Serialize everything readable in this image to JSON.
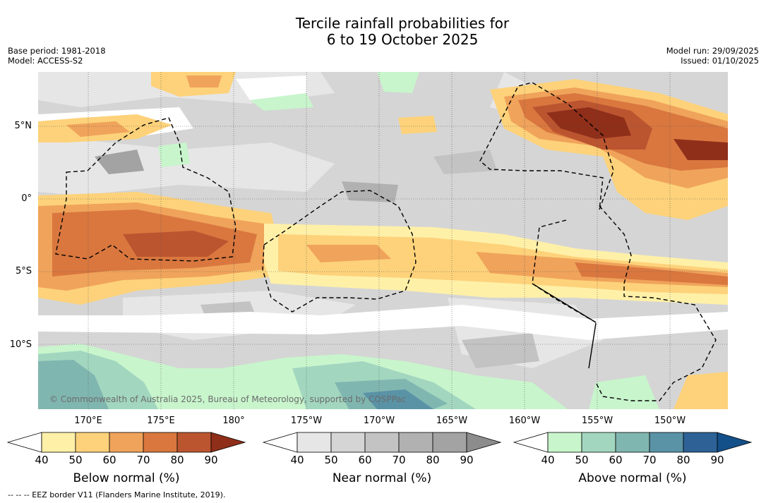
{
  "header": {
    "title_line1": "Tercile rainfall probabilities for",
    "title_line2": "6 to 19 October 2025",
    "base_period": "Base period: 1981-2018",
    "model": "Model: ACCESS-S2",
    "model_run": "Model run: 29/09/2025",
    "issued": "Issued: 01/10/2025"
  },
  "map": {
    "lat_labels": [
      "5°N",
      "0°",
      "5°S",
      "10°S"
    ],
    "lon_labels": [
      "170°E",
      "175°E",
      "180°",
      "175°W",
      "170°W",
      "165°W",
      "160°W",
      "155°W",
      "150°W"
    ],
    "credit": "© Commonwealth of Australia 2025, Bureau of Meteorology, supported by COSPPac"
  },
  "legend": {
    "ticks": [
      "40",
      "50",
      "60",
      "70",
      "80",
      "90"
    ],
    "below": {
      "title": "Below normal (%)",
      "colors": [
        "#ffffff",
        "#fff0a8",
        "#fdd27a",
        "#f0a35b",
        "#d9773f",
        "#bb5530",
        "#8f2e19"
      ]
    },
    "near": {
      "title": "Near normal (%)",
      "colors": [
        "#ffffff",
        "#e6e6e6",
        "#d5d5d5",
        "#c3c3c3",
        "#b1b1b1",
        "#a3a3a3",
        "#8c8c8c"
      ]
    },
    "above": {
      "title": "Above normal (%)",
      "colors": [
        "#ffffff",
        "#c8f5cc",
        "#a2d6bf",
        "#80b6b0",
        "#5a93a6",
        "#2e6296",
        "#134f88"
      ]
    },
    "eez_note": "-- -- -- EEZ border V11 (Flanders Marine Institute, 2019)."
  }
}
